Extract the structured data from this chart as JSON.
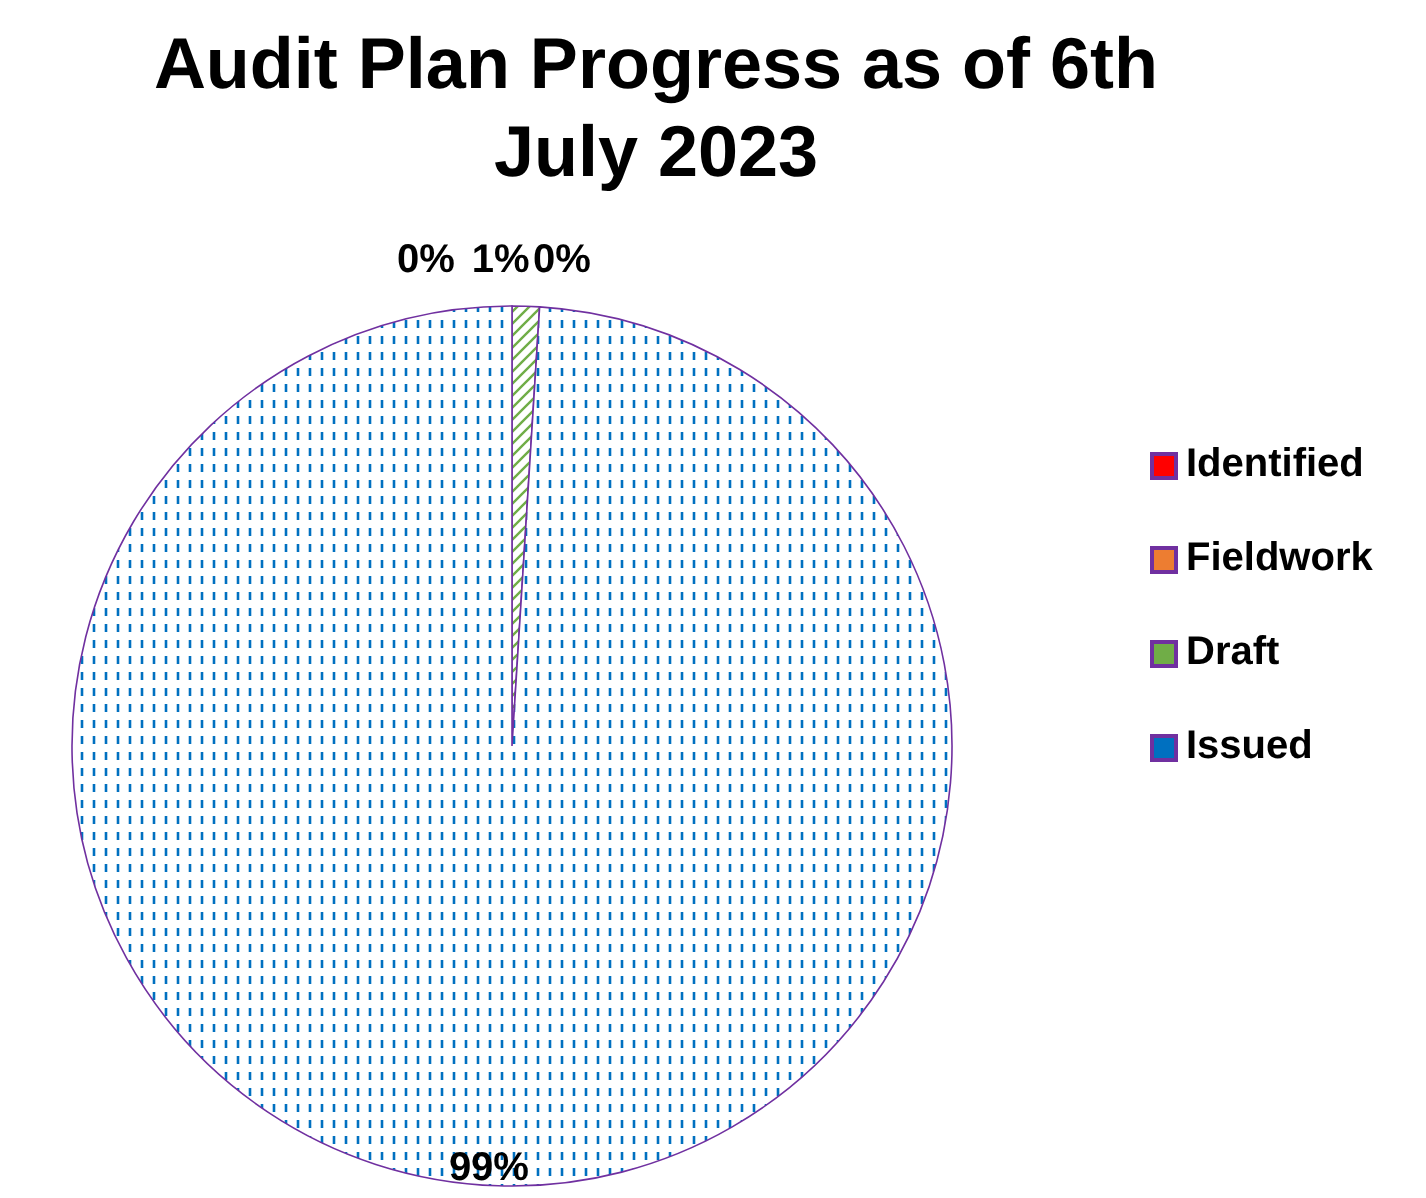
{
  "chart_data": {
    "type": "pie",
    "title": "Audit Plan Progress as of 6th July 2023",
    "categories": [
      "Identified",
      "Fieldwork",
      "Draft",
      "Issued"
    ],
    "values": [
      0,
      0,
      1,
      99
    ],
    "value_labels": [
      "0%",
      "0%",
      "1%",
      "99%"
    ],
    "colors": [
      "#ff0000",
      "#ed7d31",
      "#70ad47",
      "#0070c0"
    ],
    "legend": "right"
  }
}
